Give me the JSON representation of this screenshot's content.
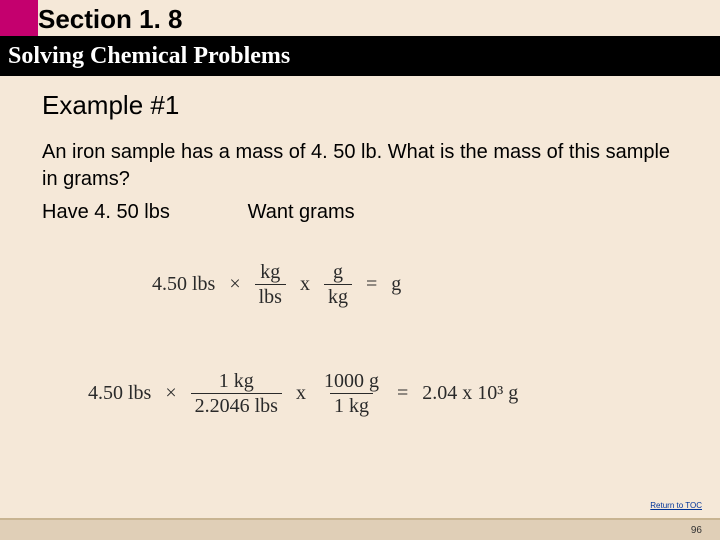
{
  "header": {
    "section_label": "Section 1. 8",
    "title": "Solving Chemical Problems",
    "colors": {
      "accent": "#c4006e",
      "title_bg": "#000000",
      "title_fg": "#ffffff",
      "page_bg": "#f5e8d8"
    }
  },
  "content": {
    "example_title": "Example #1",
    "problem_text": "An iron sample has a mass of 4. 50 lb. What is the mass of this sample in grams?",
    "have_label": "Have 4. 50 lbs",
    "want_label": "Want grams",
    "fontsize_title": 26,
    "fontsize_body": 20
  },
  "equation1": {
    "start": "4.50 lbs",
    "op1": "×",
    "frac1": {
      "num": "kg",
      "den": "lbs"
    },
    "op2": "x",
    "frac2": {
      "num": "g",
      "den": "kg"
    },
    "eq": "=",
    "result": "g"
  },
  "equation2": {
    "start": "4.50 lbs",
    "op1": "×",
    "frac1": {
      "num": "1 kg",
      "den": "2.2046 lbs"
    },
    "op2": "x",
    "frac2": {
      "num": "1000 g",
      "den": "1 kg"
    },
    "eq": "=",
    "result": "2.04 x 10³ g"
  },
  "toc_link": {
    "label": "Return to TOC"
  },
  "footer": {
    "page_number": "96"
  }
}
